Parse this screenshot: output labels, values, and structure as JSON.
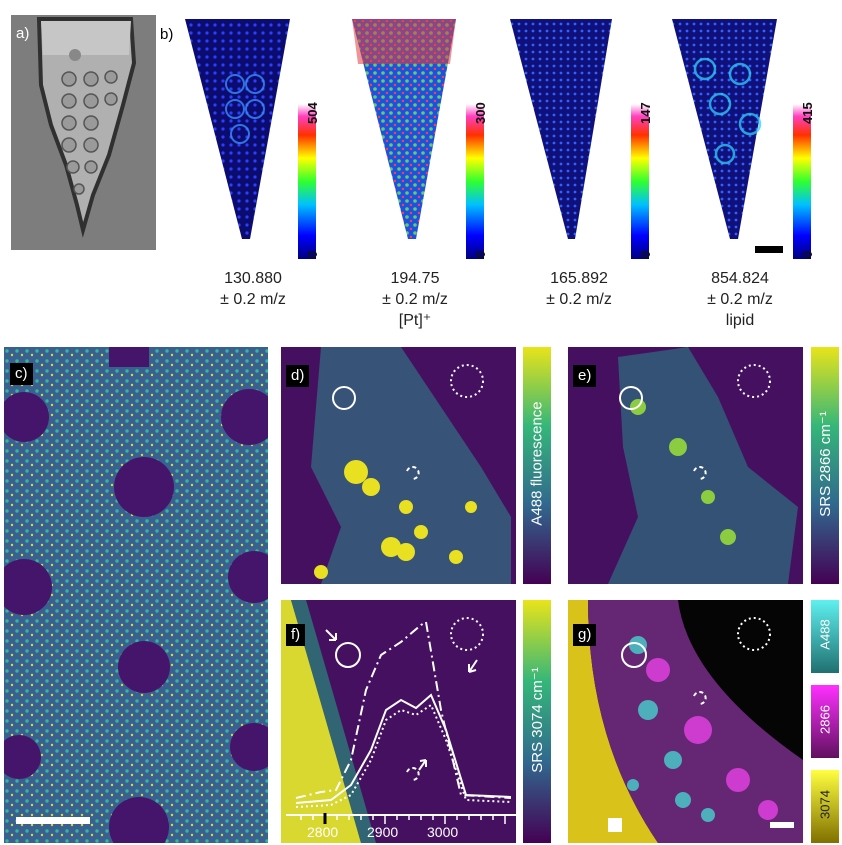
{
  "panels": {
    "a": {
      "label": "a)"
    },
    "b": {
      "label": "b)",
      "maps": [
        {
          "max": "504",
          "min": "0",
          "mz": "130.880",
          "tol": "± 0.2 m/z",
          "note": ""
        },
        {
          "max": "300",
          "min": "0",
          "mz": "194.75",
          "tol": "± 0.2 m/z",
          "note": "[Pt]⁺"
        },
        {
          "max": "147",
          "min": "0",
          "mz": "165.892",
          "tol": "± 0.2 m/z",
          "note": ""
        },
        {
          "max": "415",
          "min": "0",
          "mz": "854.824",
          "tol": "± 0.2 m/z",
          "note": "lipid"
        }
      ]
    },
    "c": {
      "label": "c)"
    },
    "d": {
      "label": "d)",
      "colorbar": "A488 fluorescence"
    },
    "e": {
      "label": "e)",
      "colorbar": "SRS 2866 cm⁻¹"
    },
    "f": {
      "label": "f)",
      "colorbar": "SRS 3074 cm⁻¹",
      "ticks": [
        "2800",
        "2900",
        "3000"
      ]
    },
    "g": {
      "label": "g)",
      "channels": [
        "A488",
        "2866",
        "3074"
      ]
    }
  },
  "colors": {
    "viridis_dark": "#440154",
    "viridis_bg": "#4a1a6e",
    "viridis_yellow": "#e8e419",
    "cyan": "#4fe0e0",
    "magenta": "#d020d0"
  }
}
